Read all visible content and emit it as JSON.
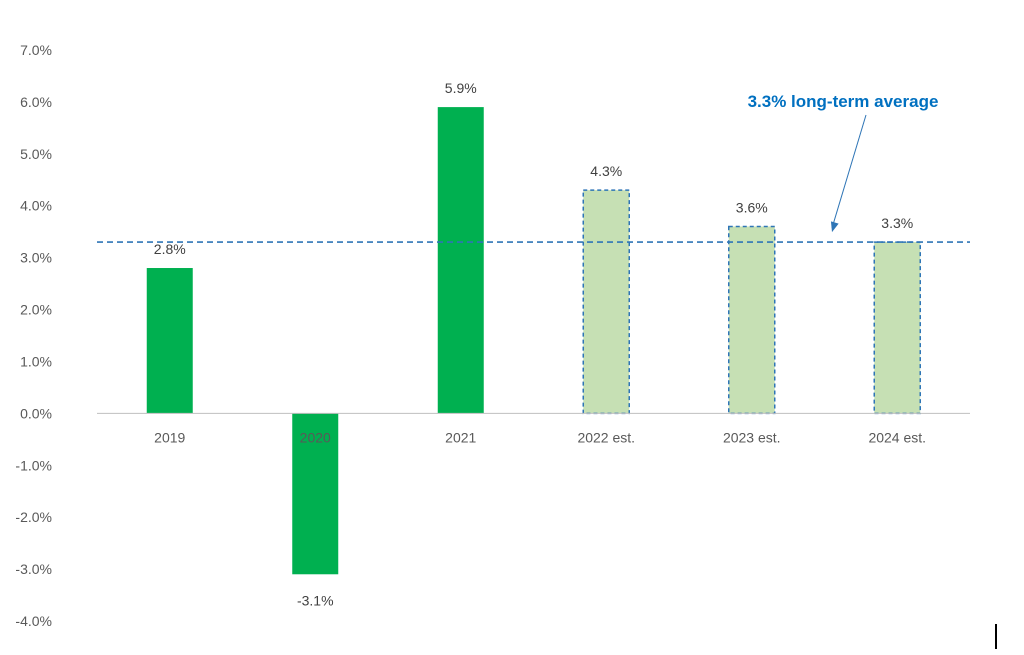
{
  "chart_data": {
    "type": "bar",
    "categories": [
      "2019",
      "2020",
      "2021",
      "2022 est.",
      "2023 est.",
      "2024 est."
    ],
    "values": [
      2.8,
      -3.1,
      5.9,
      4.3,
      3.6,
      3.3
    ],
    "data_labels": [
      "2.8%",
      "-3.1%",
      "5.9%",
      "4.3%",
      "3.6%",
      "3.3%"
    ],
    "estimated": [
      false,
      false,
      false,
      true,
      true,
      true
    ],
    "ylim": [
      -4.0,
      7.0
    ],
    "yticks": [
      -4.0,
      -3.0,
      -2.0,
      -1.0,
      0.0,
      1.0,
      2.0,
      3.0,
      4.0,
      5.0,
      6.0,
      7.0
    ],
    "ytick_labels": [
      "-4.0%",
      "-3.0%",
      "-2.0%",
      "-1.0%",
      "0.0%",
      "1.0%",
      "2.0%",
      "3.0%",
      "4.0%",
      "5.0%",
      "6.0%",
      "7.0%"
    ],
    "grid": false,
    "title": "",
    "xlabel": "",
    "ylabel": "",
    "reference_line": {
      "value": 3.3,
      "label": "3.3% long-term average",
      "style": "dashed"
    },
    "colors": {
      "actual": "#00b050",
      "estimate_fill": "#c6e0b4",
      "estimate_border": "#2e75b6",
      "reference_line": "#2e75b6",
      "reference_label": "#0070c0",
      "axis": "#bfbfbf"
    }
  }
}
